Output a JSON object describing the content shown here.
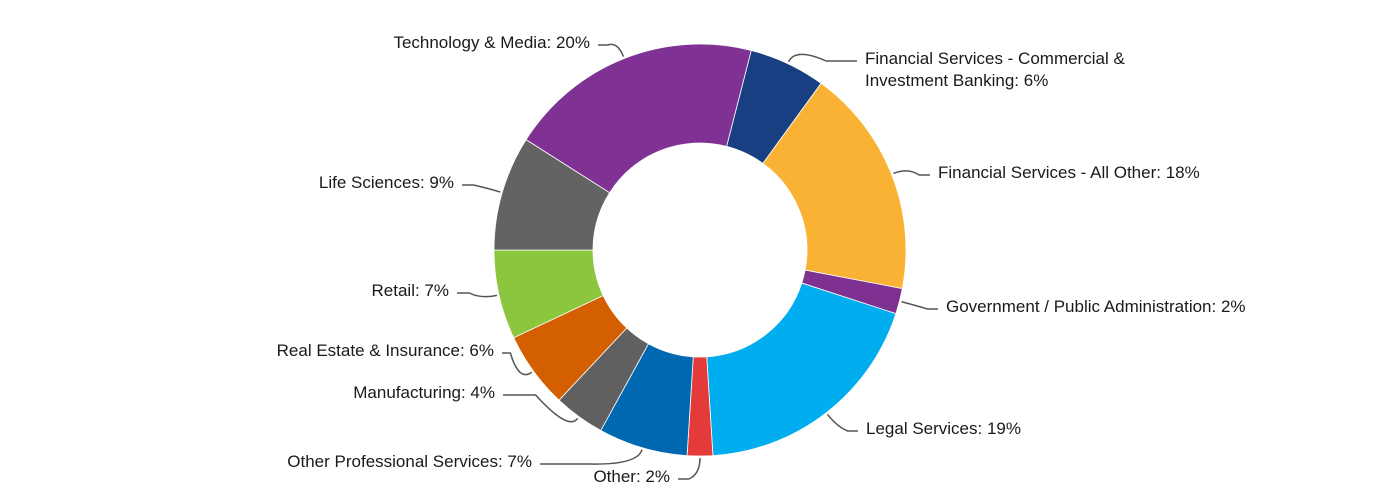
{
  "chart_data": {
    "type": "donut",
    "values": [
      6,
      18,
      2,
      19,
      2,
      7,
      4,
      6,
      7,
      9,
      20
    ],
    "value_labels": [
      "Financial Services - Commercial & Investment Banking: 6%",
      "Financial Services - All Other: 18%",
      "Government / Public Administration: 2%",
      "Legal Services: 19%",
      "Other: 2%",
      "Other Professional Services: 7%",
      "Manufacturing: 4%",
      "Real Estate & Insurance: 6%",
      "Retail: 7%",
      "Life Sciences: 9%",
      "Technology & Media: 20%"
    ],
    "colors": [
      "#173f82",
      "#f9b233",
      "#7f3192",
      "#00adee",
      "#e53a3a",
      "#0067b1",
      "#606060",
      "#d45f00",
      "#8cc63f",
      "#636363",
      "#7f3294"
    ]
  }
}
